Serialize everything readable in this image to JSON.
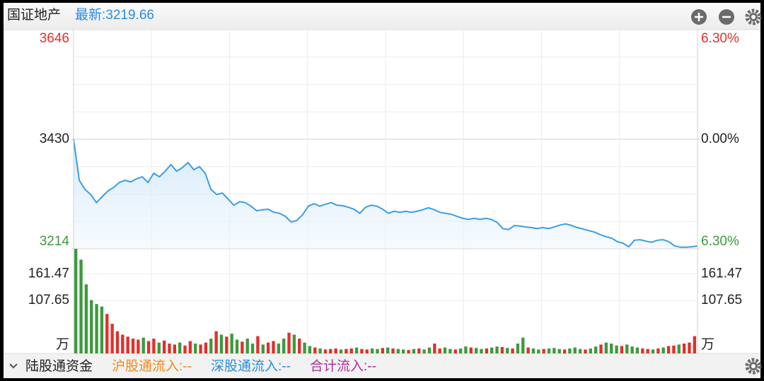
{
  "header": {
    "title": "国证地产",
    "latest": "最新:3219.66"
  },
  "chart_data": [
    {
      "type": "line",
      "color": "#3a9ee6",
      "values": [
        3430,
        3349,
        3331,
        3321,
        3305,
        3317,
        3328,
        3335,
        3345,
        3349,
        3346,
        3352,
        3356,
        3345,
        3363,
        3356,
        3367,
        3380,
        3367,
        3374,
        3384,
        3370,
        3376,
        3363,
        3331,
        3321,
        3324,
        3312,
        3300,
        3307,
        3305,
        3298,
        3289,
        3291,
        3292,
        3286,
        3284,
        3278,
        3267,
        3270,
        3281,
        3298,
        3303,
        3298,
        3302,
        3305,
        3300,
        3299,
        3296,
        3292,
        3284,
        3296,
        3300,
        3298,
        3292,
        3284,
        3288,
        3286,
        3288,
        3286,
        3288,
        3291,
        3295,
        3291,
        3286,
        3284,
        3282,
        3278,
        3274,
        3272,
        3274,
        3272,
        3274,
        3272,
        3266,
        3254,
        3252,
        3260,
        3259,
        3257,
        3256,
        3254,
        3256,
        3254,
        3257,
        3261,
        3263,
        3260,
        3256,
        3253,
        3250,
        3247,
        3242,
        3238,
        3235,
        3228,
        3225,
        3218,
        3231,
        3232,
        3229,
        3227,
        3231,
        3232,
        3228,
        3220,
        3217,
        3217,
        3218,
        3219.66
      ],
      "ylim": [
        3214,
        3646
      ],
      "yticks": [
        3646,
        3430,
        3214
      ],
      "tick_colors": [
        "#e0302c",
        "#222222",
        "#3c9a3c"
      ],
      "y2lim": [
        -6.3,
        6.3
      ],
      "y2ticks": [
        {
          "value": 6.3,
          "label": "6.30%"
        },
        {
          "value": 0,
          "label": "0.00%"
        },
        {
          "value": -6.3,
          "label": "6.30%"
        }
      ],
      "grid": true
    },
    {
      "type": "bar",
      "unit": "万",
      "values": [
        212,
        190,
        140,
        108,
        100,
        95,
        80,
        60,
        45,
        38,
        34,
        30,
        28,
        32,
        25,
        30,
        22,
        26,
        20,
        18,
        22,
        16,
        25,
        20,
        18,
        22,
        30,
        45,
        38,
        34,
        40,
        28,
        24,
        30,
        20,
        35,
        18,
        22,
        25,
        20,
        30,
        42,
        38,
        30,
        22,
        15,
        12,
        10,
        8,
        9,
        10,
        8,
        9,
        10,
        12,
        9,
        8,
        10,
        9,
        11,
        12,
        10,
        9,
        8,
        7,
        9,
        10,
        8,
        12,
        20,
        10,
        12,
        9,
        8,
        10,
        14,
        12,
        11,
        9,
        10,
        12,
        14,
        13,
        11,
        10,
        20,
        32,
        12,
        10,
        8,
        9,
        10,
        11,
        9,
        8,
        10,
        12,
        9,
        8,
        10,
        14,
        18,
        22,
        20,
        16,
        15,
        18,
        14,
        12,
        10,
        9,
        8,
        10,
        12,
        15,
        16,
        18,
        20,
        22,
        35
      ],
      "colors": [
        "#3c9a3c",
        "#3c9a3c",
        "#3c9a3c",
        "#3c9a3c",
        "#3c9a3c",
        "#3c9a3c",
        "#e0302c",
        "#e0302c",
        "#e0302c",
        "#e0302c",
        "#e0302c",
        "#e0302c",
        "#e0302c",
        "#3c9a3c",
        "#e0302c",
        "#e0302c",
        "#3c9a3c",
        "#e0302c",
        "#e0302c",
        "#e0302c",
        "#3c9a3c",
        "#e0302c",
        "#e0302c",
        "#3c9a3c",
        "#e0302c",
        "#e0302c",
        "#3c9a3c",
        "#e0302c",
        "#3c9a3c",
        "#e0302c",
        "#3c9a3c",
        "#3c9a3c",
        "#e0302c",
        "#3c9a3c",
        "#3c9a3c",
        "#e0302c",
        "#3c9a3c",
        "#e0302c",
        "#e0302c",
        "#3c9a3c",
        "#3c9a3c",
        "#e0302c",
        "#3c9a3c",
        "#e0302c",
        "#3c9a3c",
        "#3c9a3c",
        "#e0302c",
        "#3c9a3c",
        "#e0302c",
        "#e0302c",
        "#e0302c",
        "#3c9a3c",
        "#e0302c",
        "#e0302c",
        "#3c9a3c",
        "#e0302c",
        "#e0302c",
        "#3c9a3c",
        "#3c9a3c",
        "#e0302c",
        "#3c9a3c",
        "#e0302c",
        "#3c9a3c",
        "#3c9a3c",
        "#e0302c",
        "#3c9a3c",
        "#e0302c",
        "#3c9a3c",
        "#3c9a3c",
        "#e0302c",
        "#e0302c",
        "#3c9a3c",
        "#3c9a3c",
        "#e0302c",
        "#3c9a3c",
        "#3c9a3c",
        "#e0302c",
        "#3c9a3c",
        "#3c9a3c",
        "#e0302c",
        "#3c9a3c",
        "#3c9a3c",
        "#e0302c",
        "#3c9a3c",
        "#e0302c",
        "#3c9a3c",
        "#3c9a3c",
        "#e0302c",
        "#3c9a3c",
        "#3c9a3c",
        "#e0302c",
        "#3c9a3c",
        "#3c9a3c",
        "#3c9a3c",
        "#e0302c",
        "#3c9a3c",
        "#3c9a3c",
        "#3c9a3c",
        "#e0302c",
        "#3c9a3c",
        "#3c9a3c",
        "#e0302c",
        "#3c9a3c",
        "#3c9a3c",
        "#3c9a3c",
        "#e0302c",
        "#3c9a3c",
        "#3c9a3c",
        "#3c9a3c",
        "#e0302c",
        "#e0302c",
        "#3c9a3c",
        "#e0302c",
        "#3c9a3c",
        "#e0302c",
        "#e0302c",
        "#3c9a3c",
        "#e0302c",
        "#e0302c",
        "#e0302c"
      ],
      "ylim": [
        0,
        212
      ],
      "yticks": [
        161.47,
        107.65
      ]
    }
  ],
  "footer": {
    "title": "陆股通资金",
    "items": [
      {
        "text": "沪股通流入:--",
        "color": "#f08a1c"
      },
      {
        "text": "深股通流入:--",
        "color": "#2a8de0"
      },
      {
        "text": "合计流入:--",
        "color": "#b0309a"
      }
    ]
  }
}
